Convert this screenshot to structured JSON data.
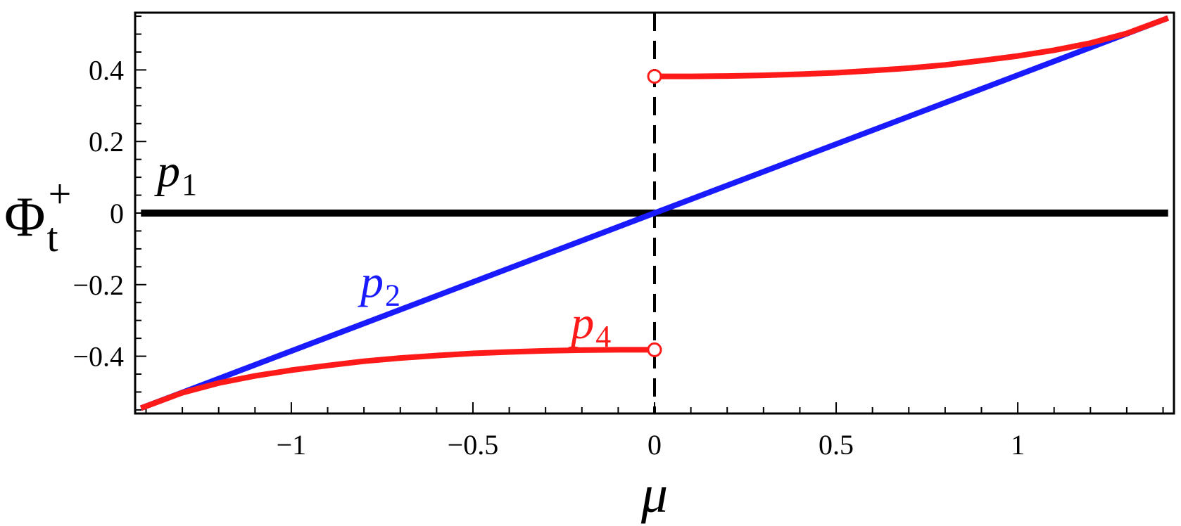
{
  "chart_data": {
    "type": "line",
    "xlabel": "μ",
    "ylabel": {
      "main": "Φ",
      "sub": "t",
      "sup": "+"
    },
    "xlim": [
      -1.43,
      1.43
    ],
    "ylim": [
      -0.56,
      0.56
    ],
    "x_ticks": [
      {
        "value": -1,
        "label": "−1"
      },
      {
        "value": -0.5,
        "label": "−0.5"
      },
      {
        "value": 0,
        "label": "0"
      },
      {
        "value": 0.5,
        "label": "0.5"
      },
      {
        "value": 1,
        "label": "1"
      }
    ],
    "y_ticks": [
      {
        "value": -0.4,
        "label": "−0.4"
      },
      {
        "value": -0.2,
        "label": "−0.2"
      },
      {
        "value": 0,
        "label": "0"
      },
      {
        "value": 0.2,
        "label": "0.2"
      },
      {
        "value": 0.4,
        "label": "0.4"
      }
    ],
    "vertical_line": {
      "x": 0,
      "style": "dashed",
      "color": "#000000"
    },
    "series": [
      {
        "name": "p1",
        "color": "#000000",
        "points": [
          [
            -1.414,
            0.0
          ],
          [
            1.414,
            0.0
          ]
        ]
      },
      {
        "name": "p2",
        "color": "#1a1aff",
        "points": [
          [
            -1.414,
            -0.545
          ],
          [
            1.414,
            0.545
          ]
        ]
      },
      {
        "name": "p4",
        "color": "#ff1a1a",
        "segments": [
          [
            [
              -1.414,
              -0.545
            ],
            [
              -1.3,
              -0.502
            ],
            [
              -1.2,
              -0.475
            ],
            [
              -1.1,
              -0.455
            ],
            [
              -1.0,
              -0.439
            ],
            [
              -0.9,
              -0.426
            ],
            [
              -0.8,
              -0.414
            ],
            [
              -0.7,
              -0.405
            ],
            [
              -0.6,
              -0.398
            ],
            [
              -0.5,
              -0.392
            ],
            [
              -0.4,
              -0.388
            ],
            [
              -0.3,
              -0.385
            ],
            [
              -0.2,
              -0.383
            ],
            [
              -0.1,
              -0.382
            ],
            [
              0.0,
              -0.382
            ]
          ],
          [
            [
              0.0,
              0.382
            ],
            [
              0.1,
              0.382
            ],
            [
              0.2,
              0.383
            ],
            [
              0.3,
              0.385
            ],
            [
              0.4,
              0.388
            ],
            [
              0.5,
              0.392
            ],
            [
              0.6,
              0.398
            ],
            [
              0.7,
              0.405
            ],
            [
              0.8,
              0.414
            ],
            [
              0.9,
              0.426
            ],
            [
              1.0,
              0.439
            ],
            [
              1.1,
              0.455
            ],
            [
              1.2,
              0.475
            ],
            [
              1.3,
              0.502
            ],
            [
              1.414,
              0.545
            ]
          ]
        ],
        "open_endpoints": [
          [
            0.0,
            -0.382
          ],
          [
            0.0,
            0.382
          ]
        ]
      }
    ],
    "series_labels": [
      {
        "series": "p1",
        "main": "p",
        "sub": "1",
        "color": "#000000",
        "anchor_x": -1.37,
        "anchor_y": 0.075
      },
      {
        "series": "p2",
        "main": "p",
        "sub": "2",
        "color": "#1a1aff",
        "anchor_x": -0.81,
        "anchor_y": -0.235
      },
      {
        "series": "p4",
        "main": "p",
        "sub": "4",
        "color": "#ff1a1a",
        "anchor_x": -0.23,
        "anchor_y": -0.35
      }
    ]
  }
}
